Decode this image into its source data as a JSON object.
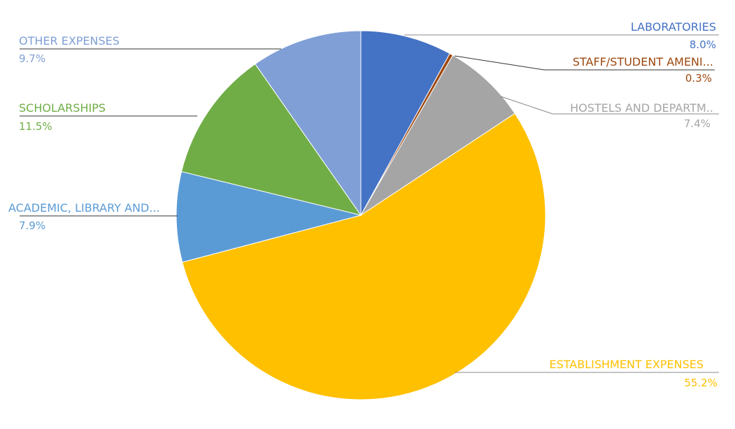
{
  "chart_data": {
    "type": "pie",
    "title": "",
    "start": "top",
    "direction": "clockwise",
    "slices": [
      {
        "label": "LABORATORIES",
        "value": 8.0,
        "display": "8.0%",
        "color": "#4472C4"
      },
      {
        "label": "STAFF/STUDENT AMENI...",
        "value": 0.3,
        "display": "0.3%",
        "color": "#9E480E"
      },
      {
        "label": "HOSTELS AND DEPARTM..",
        "value": 7.4,
        "display": "7.4%",
        "color": "#A5A5A5"
      },
      {
        "label": "ESTABLISHMENT EXPENSES",
        "value": 55.2,
        "display": "55.2%",
        "color": "#FFC000"
      },
      {
        "label": "ACADEMIC, LIBRARY AND...",
        "value": 7.9,
        "display": "7.9%",
        "color": "#5B9BD5"
      },
      {
        "label": "SCHOLARSHIPS",
        "value": 11.5,
        "display": "11.5%",
        "color": "#70AD47"
      },
      {
        "label": "OTHER EXPENSES",
        "value": 9.7,
        "display": "9.7%",
        "color": "#7F9FD6"
      }
    ]
  }
}
